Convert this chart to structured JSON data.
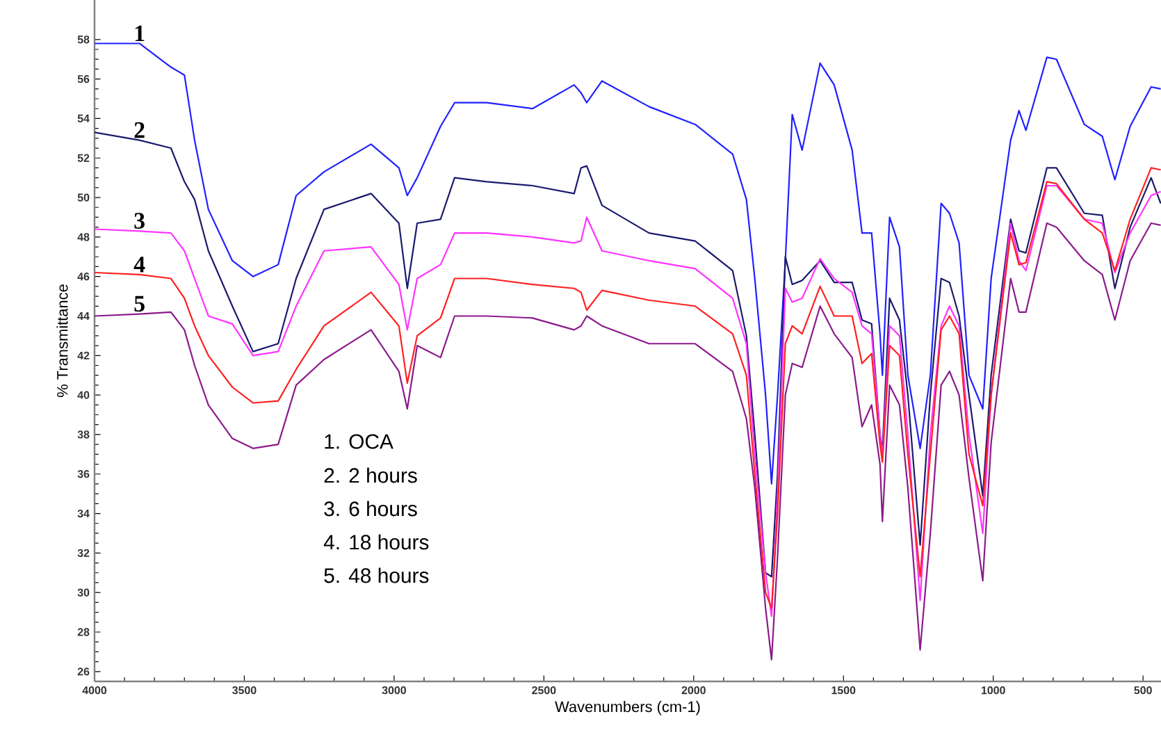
{
  "chart_data": {
    "type": "line",
    "xlabel": "Wavenumbers (cm-1)",
    "ylabel": "% Transmittance",
    "xlim": [
      4000,
      440
    ],
    "ylim": [
      25.5,
      60
    ],
    "xticks": [
      4000,
      3500,
      3000,
      2500,
      2000,
      1500,
      1000,
      500
    ],
    "yticks": [
      26,
      28,
      30,
      32,
      34,
      36,
      38,
      40,
      42,
      44,
      46,
      48,
      50,
      52,
      54,
      56,
      58
    ],
    "x": [
      4000,
      3850,
      3745,
      3700,
      3666,
      3620,
      3540,
      3471,
      3387,
      3327,
      3234,
      3077,
      2984,
      2956,
      2923,
      2845,
      2798,
      2691,
      2538,
      2399,
      2376,
      2357,
      2306,
      2149,
      1995,
      1870,
      1824,
      1796,
      1760,
      1740,
      1720,
      1694,
      1671,
      1638,
      1578,
      1531,
      1471,
      1438,
      1406,
      1378,
      1370,
      1346,
      1313,
      1285,
      1244,
      1210,
      1174,
      1146,
      1114,
      1081,
      1035,
      1007,
      942,
      914,
      891,
      821,
      789,
      696,
      636,
      594,
      543,
      473,
      441
    ],
    "series": [
      {
        "name": "1",
        "color": "#2020ff",
        "values": [
          57.8,
          57.8,
          56.6,
          56.2,
          52.9,
          49.4,
          46.8,
          46.0,
          46.6,
          50.1,
          51.3,
          52.7,
          51.5,
          50.1,
          51.0,
          53.6,
          54.8,
          54.8,
          54.5,
          55.7,
          55.3,
          54.8,
          55.9,
          54.6,
          53.7,
          52.2,
          49.9,
          45.9,
          40,
          35.5,
          40,
          46.8,
          54.2,
          52.4,
          56.8,
          55.7,
          52.4,
          48.2,
          48.2,
          43.1,
          41,
          49.0,
          47.5,
          41,
          37.3,
          41,
          49.7,
          49.2,
          47.7,
          41,
          39.3,
          45.9,
          52.9,
          54.4,
          53.4,
          57.1,
          57.0,
          53.7,
          53.1,
          50.9,
          53.6,
          55.6,
          55.5
        ]
      },
      {
        "name": "2",
        "color": "#1a1a6e",
        "values": [
          53.3,
          52.9,
          52.5,
          50.8,
          49.9,
          47.3,
          44.5,
          42.2,
          42.6,
          45.9,
          49.4,
          50.2,
          48.7,
          45.4,
          48.7,
          48.9,
          51.0,
          50.8,
          50.6,
          50.2,
          51.5,
          51.6,
          49.6,
          48.2,
          47.8,
          46.3,
          43.0,
          38,
          31,
          30.8,
          36,
          47.0,
          45.6,
          45.8,
          46.8,
          45.7,
          45.7,
          43.8,
          43.6,
          38,
          37.2,
          44.9,
          43.8,
          40,
          32.4,
          40,
          45.9,
          45.7,
          44.0,
          40,
          34.9,
          41,
          48.9,
          47.3,
          47.2,
          51.5,
          51.5,
          49.2,
          49.1,
          45.4,
          48.5,
          51.0,
          49.7
        ]
      },
      {
        "name": "3",
        "color": "#ff33ff",
        "values": [
          48.4,
          48.3,
          48.2,
          47.3,
          45.9,
          44.0,
          43.6,
          42.0,
          42.2,
          44.5,
          47.3,
          47.5,
          45.6,
          43.3,
          45.9,
          46.6,
          48.2,
          48.2,
          48.0,
          47.7,
          47.8,
          49.0,
          47.3,
          46.8,
          46.4,
          44.9,
          42.6,
          37,
          31,
          28.8,
          35,
          45.4,
          44.7,
          44.9,
          46.9,
          45.9,
          45.2,
          43.5,
          43.1,
          38,
          36.9,
          43.5,
          43.0,
          38,
          29.6,
          38,
          43.5,
          44.5,
          43.5,
          38,
          33.0,
          40,
          48.7,
          46.8,
          46.3,
          50.6,
          50.6,
          48.9,
          48.7,
          46.2,
          48.2,
          50.1,
          50.3
        ]
      },
      {
        "name": "4",
        "color": "#ff2020",
        "values": [
          46.2,
          46.1,
          45.9,
          44.9,
          43.5,
          42.0,
          40.4,
          39.6,
          39.7,
          41.3,
          43.5,
          45.2,
          43.5,
          40.6,
          43.0,
          43.9,
          45.9,
          45.9,
          45.6,
          45.4,
          45.2,
          44.3,
          45.3,
          44.8,
          44.5,
          43.1,
          41,
          36,
          30,
          29.2,
          34,
          42.6,
          43.5,
          43.1,
          45.5,
          44.0,
          44.0,
          41.6,
          42.1,
          37.5,
          36.6,
          42.5,
          42.0,
          37,
          30.8,
          37,
          43.3,
          44.0,
          43.1,
          37,
          34.4,
          40,
          48.2,
          46.6,
          46.7,
          50.8,
          50.7,
          48.9,
          48.2,
          46.3,
          48.9,
          51.5,
          51.4
        ]
      },
      {
        "name": "5",
        "color": "#8b1a8b",
        "values": [
          44.0,
          44.1,
          44.2,
          43.3,
          41.5,
          39.5,
          37.8,
          37.3,
          37.5,
          40.5,
          41.8,
          43.3,
          41.2,
          39.3,
          42.5,
          41.9,
          44.0,
          44.0,
          43.9,
          43.3,
          43.5,
          44.0,
          43.5,
          42.6,
          42.6,
          41.2,
          38.8,
          35.3,
          29.2,
          26.6,
          31.8,
          40.0,
          41.6,
          41.4,
          44.5,
          43.1,
          41.9,
          38.4,
          39.5,
          36.5,
          33.6,
          40.5,
          39.5,
          35.3,
          27.1,
          33.0,
          40.5,
          41.2,
          40.0,
          35.8,
          30.6,
          37.6,
          45.9,
          44.2,
          44.2,
          48.7,
          48.5,
          46.8,
          46.1,
          43.8,
          46.8,
          48.7,
          48.6
        ]
      }
    ],
    "annotations": [
      "1. OCA",
      "2. 2 hours",
      "3. 6 hours",
      "4. 18 hours",
      "5. 48 hours"
    ],
    "grid": false,
    "line_style": "solid"
  }
}
